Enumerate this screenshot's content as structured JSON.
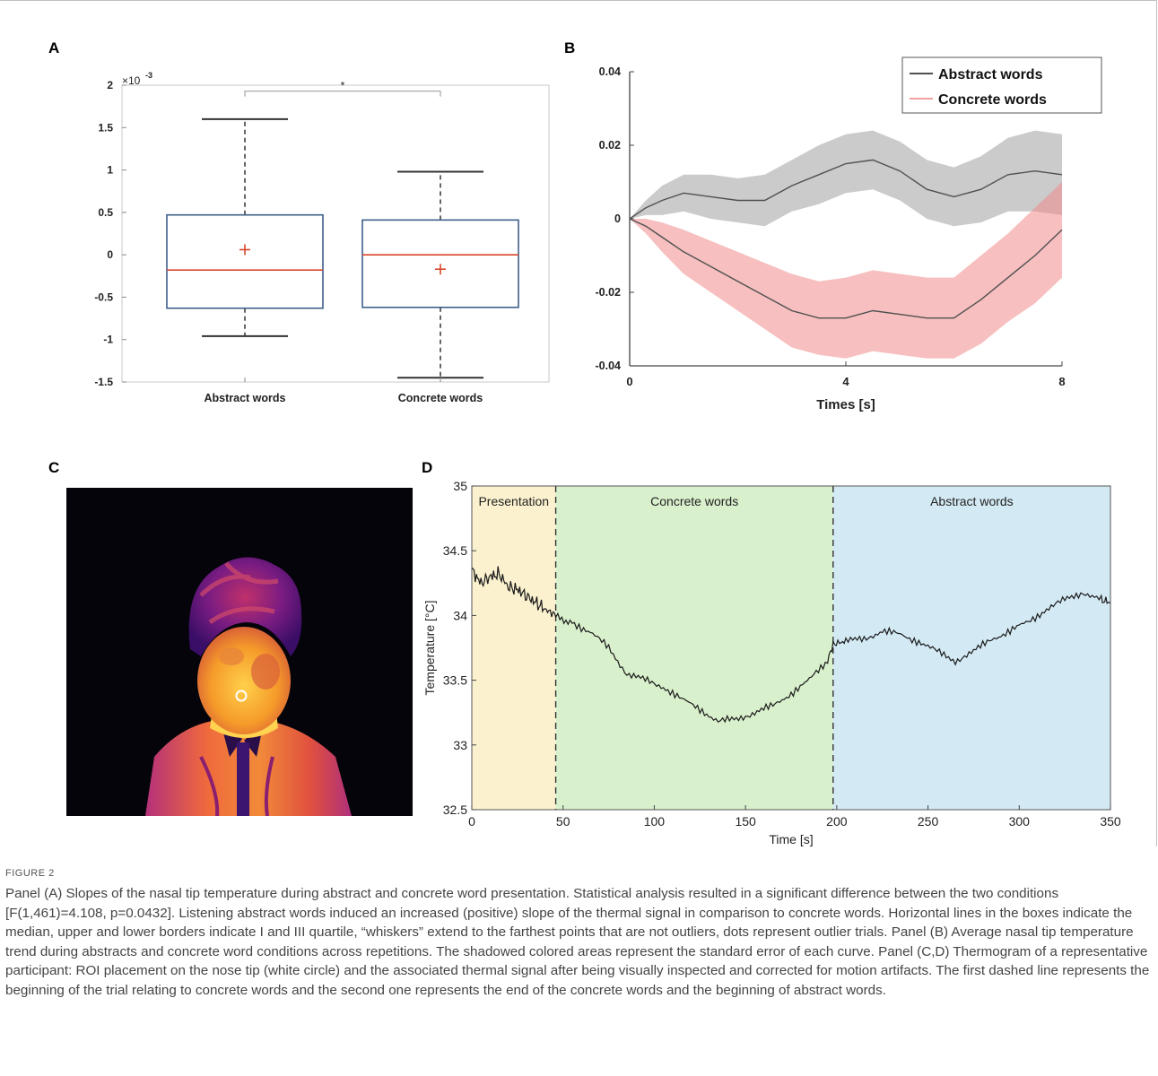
{
  "panels": {
    "a": "A",
    "b": "B",
    "c": "C",
    "d": "D"
  },
  "chart_data": [
    {
      "panel": "A",
      "type": "box",
      "categories": [
        "Abstract words",
        "Concrete words"
      ],
      "axis_multiplier": "×10",
      "axis_exponent": "-3",
      "ylim": [
        -1.5,
        2
      ],
      "yticks": [
        "2",
        "1.5",
        "1",
        "0.5",
        "0",
        "-0.5",
        "-1",
        "-1.5"
      ],
      "significance": "*",
      "boxes": [
        {
          "name": "Abstract words",
          "q1": -0.63,
          "median": -0.18,
          "q3": 0.47,
          "whisker_low": -0.96,
          "whisker_high": 1.6,
          "mean": 0.06
        },
        {
          "name": "Concrete words",
          "q1": -0.62,
          "median": 0.0,
          "q3": 0.41,
          "whisker_low": -1.45,
          "whisker_high": 0.98,
          "mean": -0.17
        }
      ],
      "colors": {
        "box": "#3d5f8a",
        "median": "#d9472b",
        "mean": "#d9472b"
      }
    },
    {
      "panel": "B",
      "type": "line",
      "xlabel": "Times [s]",
      "xlim": [
        0,
        8
      ],
      "ylim": [
        -0.04,
        0.04
      ],
      "xticks": [
        "0",
        "4",
        "8"
      ],
      "yticks": [
        "0.04",
        "0.02",
        "0",
        "-0.02",
        "-0.04"
      ],
      "legend_position": "top-right",
      "x": [
        0,
        0.3,
        0.6,
        1.0,
        1.5,
        2.0,
        2.5,
        3.0,
        3.5,
        4.0,
        4.5,
        5.0,
        5.5,
        6.0,
        6.5,
        7.0,
        7.5,
        8.0
      ],
      "series": [
        {
          "name": "Abstract words",
          "color": "#505050",
          "band_color": "#a0a0a0",
          "values": [
            0,
            0.003,
            0.005,
            0.007,
            0.006,
            0.005,
            0.005,
            0.009,
            0.012,
            0.015,
            0.016,
            0.013,
            0.008,
            0.006,
            0.008,
            0.012,
            0.013,
            0.012
          ],
          "se": [
            0,
            0.002,
            0.004,
            0.005,
            0.006,
            0.006,
            0.007,
            0.007,
            0.008,
            0.008,
            0.008,
            0.008,
            0.008,
            0.008,
            0.009,
            0.01,
            0.011,
            0.011
          ]
        },
        {
          "name": "Concrete words",
          "color": "#505050",
          "band_color": "#f08a8a",
          "values": [
            0,
            -0.002,
            -0.005,
            -0.009,
            -0.013,
            -0.017,
            -0.021,
            -0.025,
            -0.027,
            -0.027,
            -0.025,
            -0.026,
            -0.027,
            -0.027,
            -0.022,
            -0.016,
            -0.01,
            -0.003
          ],
          "se": [
            0,
            0.002,
            0.004,
            0.006,
            0.007,
            0.008,
            0.009,
            0.01,
            0.01,
            0.011,
            0.011,
            0.011,
            0.011,
            0.011,
            0.012,
            0.012,
            0.013,
            0.013
          ]
        }
      ]
    },
    {
      "panel": "D",
      "type": "line",
      "xlabel": "Time [s]",
      "ylabel": "Temperature [°C]",
      "xlim": [
        0,
        350
      ],
      "ylim": [
        32.5,
        35
      ],
      "xticks": [
        "0",
        "50",
        "100",
        "150",
        "200",
        "250",
        "300",
        "350"
      ],
      "yticks": [
        "35",
        "34.5",
        "34",
        "33.5",
        "33",
        "32.5"
      ],
      "regions": [
        {
          "label": "Presentation",
          "from": 0,
          "to": 46,
          "color": "#fbf1cf"
        },
        {
          "label": "Concrete words",
          "from": 46,
          "to": 198,
          "color": "#d9f0cc"
        },
        {
          "label": "Abstract words",
          "from": 198,
          "to": 350,
          "color": "#d3eaf4"
        }
      ],
      "dashed_lines_x": [
        46,
        198
      ],
      "series": [
        {
          "name": "",
          "color": "#1a1a1a",
          "x": [
            0,
            5,
            10,
            15,
            20,
            25,
            30,
            35,
            40,
            46,
            55,
            65,
            75,
            85,
            95,
            105,
            115,
            125,
            135,
            145,
            155,
            165,
            175,
            185,
            195,
            198,
            205,
            215,
            225,
            235,
            245,
            255,
            265,
            275,
            285,
            295,
            305,
            315,
            325,
            335,
            345,
            350
          ],
          "values": [
            34.35,
            34.25,
            34.3,
            34.32,
            34.22,
            34.2,
            34.15,
            34.1,
            34.05,
            34.0,
            33.95,
            33.87,
            33.75,
            33.55,
            33.5,
            33.45,
            33.35,
            33.28,
            33.18,
            33.2,
            33.25,
            33.3,
            33.4,
            33.5,
            33.65,
            33.78,
            33.8,
            33.82,
            33.88,
            33.85,
            33.8,
            33.72,
            33.65,
            33.72,
            33.82,
            33.88,
            33.95,
            34.05,
            34.12,
            34.18,
            34.12,
            34.1
          ]
        }
      ]
    }
  ],
  "caption": {
    "label": "FIGURE 2",
    "text": "Panel (A) Slopes of the nasal tip temperature during abstract and concrete word presentation. Statistical analysis resulted in a significant difference between the two conditions [F(1,461)=4.108, p=0.0432]. Listening abstract words induced an increased (positive) slope of the thermal signal in comparison to concrete words. Horizontal lines in the boxes indicate the median, upper and lower borders indicate I and III quartile, “whiskers” extend to the farthest points that are not outliers, dots represent outlier trials. Panel (B) Average nasal tip temperature trend during abstracts and concrete word conditions across repetitions. The shadowed colored areas represent the standard error of each curve. Panel (C,D) Thermogram of a representative participant: ROI placement on the nose tip (white circle) and the associated thermal signal after being visually inspected and corrected for motion artifacts. The first dashed line represents the beginning of the trial relating to concrete words and the second one represents the end of the concrete words and the beginning of abstract words."
  }
}
